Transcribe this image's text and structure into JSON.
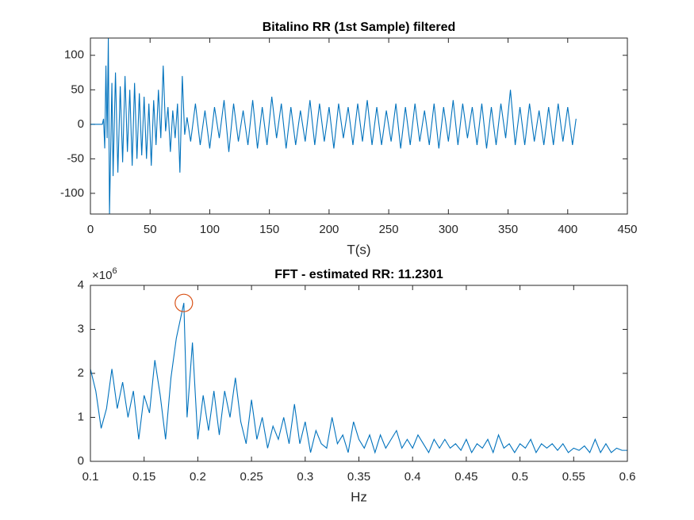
{
  "chart_data": [
    {
      "type": "line",
      "title": "Bitalino RR (1st Sample) filtered",
      "xlabel": "T(s)",
      "color": "#0072bd",
      "x": [
        0,
        10,
        11,
        12,
        13,
        14,
        15,
        16,
        18,
        19,
        21,
        23,
        25,
        27,
        29,
        31,
        33,
        35,
        37,
        39,
        41,
        43,
        45,
        47,
        49,
        51,
        53,
        55,
        57,
        59,
        61,
        63,
        65,
        67,
        69,
        71,
        73,
        75,
        77,
        79,
        81,
        84,
        88,
        92,
        96,
        100,
        104,
        108,
        112,
        116,
        120,
        124,
        128,
        132,
        136,
        140,
        144,
        148,
        152,
        156,
        160,
        164,
        168,
        172,
        176,
        180,
        184,
        188,
        192,
        196,
        200,
        204,
        208,
        212,
        216,
        220,
        224,
        228,
        232,
        236,
        240,
        244,
        248,
        252,
        256,
        260,
        264,
        268,
        272,
        276,
        280,
        284,
        288,
        292,
        296,
        300,
        304,
        308,
        312,
        316,
        320,
        324,
        328,
        332,
        336,
        340,
        344,
        348,
        352,
        356,
        360,
        364,
        368,
        372,
        376,
        380,
        384,
        388,
        392,
        396,
        400,
        404,
        407
      ],
      "values": [
        0,
        0,
        8,
        -35,
        85,
        -20,
        125,
        -130,
        60,
        -75,
        75,
        -70,
        55,
        -55,
        70,
        -40,
        50,
        -60,
        60,
        -50,
        45,
        -45,
        40,
        -50,
        30,
        -60,
        35,
        -30,
        50,
        -20,
        85,
        -10,
        25,
        -40,
        20,
        -20,
        30,
        -70,
        70,
        -15,
        10,
        -25,
        30,
        -30,
        20,
        -35,
        25,
        -20,
        35,
        -40,
        30,
        -25,
        20,
        -30,
        35,
        -35,
        25,
        -30,
        40,
        -20,
        30,
        -35,
        25,
        -30,
        20,
        -25,
        35,
        -30,
        30,
        -25,
        25,
        -35,
        30,
        -20,
        25,
        -30,
        30,
        -25,
        35,
        -30,
        25,
        -30,
        20,
        -25,
        30,
        -35,
        25,
        -30,
        30,
        -25,
        20,
        -30,
        30,
        -35,
        25,
        -25,
        35,
        -30,
        30,
        -20,
        25,
        -30,
        30,
        -35,
        25,
        -30,
        30,
        -20,
        50,
        -30,
        25,
        -30,
        30,
        -25,
        20,
        -30,
        25,
        -30,
        30,
        -25,
        25,
        -30,
        8
      ],
      "xlim": [
        0,
        450
      ],
      "xticks": [
        0,
        50,
        100,
        150,
        200,
        250,
        300,
        350,
        400,
        450
      ],
      "ylim": [
        -130,
        125
      ],
      "yticks": [
        -100,
        -50,
        0,
        50,
        100
      ]
    },
    {
      "type": "line",
      "title": "FFT - estimated RR: 11.2301",
      "xlabel": "Hz",
      "color": "#0072bd",
      "y_exponent": {
        "base": "×10",
        "power": "6"
      },
      "marker": {
        "x": 0.187,
        "y": 3600000,
        "color": "#d95319"
      },
      "x": [
        0.1,
        0.105,
        0.11,
        0.115,
        0.12,
        0.125,
        0.13,
        0.135,
        0.14,
        0.145,
        0.15,
        0.155,
        0.16,
        0.165,
        0.17,
        0.175,
        0.18,
        0.187,
        0.19,
        0.195,
        0.2,
        0.205,
        0.21,
        0.215,
        0.22,
        0.225,
        0.23,
        0.235,
        0.24,
        0.245,
        0.25,
        0.255,
        0.26,
        0.265,
        0.27,
        0.275,
        0.28,
        0.285,
        0.29,
        0.295,
        0.3,
        0.305,
        0.31,
        0.315,
        0.32,
        0.325,
        0.33,
        0.335,
        0.34,
        0.345,
        0.35,
        0.355,
        0.36,
        0.365,
        0.37,
        0.375,
        0.38,
        0.385,
        0.39,
        0.395,
        0.4,
        0.405,
        0.41,
        0.415,
        0.42,
        0.425,
        0.43,
        0.435,
        0.44,
        0.445,
        0.45,
        0.455,
        0.46,
        0.465,
        0.47,
        0.475,
        0.48,
        0.485,
        0.49,
        0.495,
        0.5,
        0.505,
        0.51,
        0.515,
        0.52,
        0.525,
        0.53,
        0.535,
        0.54,
        0.545,
        0.55,
        0.555,
        0.56,
        0.565,
        0.57,
        0.575,
        0.58,
        0.585,
        0.59,
        0.595,
        0.6
      ],
      "values": [
        2100000,
        1600000,
        750000,
        1200000,
        2100000,
        1200000,
        1800000,
        1000000,
        1600000,
        500000,
        1500000,
        1100000,
        2300000,
        1500000,
        500000,
        1900000,
        2800000,
        3600000,
        1000000,
        2700000,
        500000,
        1500000,
        700000,
        1600000,
        600000,
        1600000,
        1000000,
        1900000,
        900000,
        400000,
        1400000,
        500000,
        1000000,
        300000,
        800000,
        500000,
        1000000,
        400000,
        1300000,
        400000,
        900000,
        200000,
        700000,
        400000,
        300000,
        1000000,
        400000,
        600000,
        200000,
        900000,
        500000,
        300000,
        600000,
        200000,
        600000,
        300000,
        500000,
        700000,
        300000,
        500000,
        300000,
        600000,
        400000,
        200000,
        500000,
        300000,
        500000,
        300000,
        400000,
        250000,
        500000,
        200000,
        400000,
        300000,
        500000,
        200000,
        600000,
        300000,
        400000,
        200000,
        400000,
        300000,
        500000,
        200000,
        400000,
        300000,
        400000,
        250000,
        400000,
        200000,
        300000,
        250000,
        350000,
        200000,
        500000,
        200000,
        400000,
        200000,
        300000,
        250000,
        250000
      ],
      "xlim": [
        0.1,
        0.6
      ],
      "xticks": [
        0.1,
        0.15,
        0.2,
        0.25,
        0.3,
        0.35,
        0.4,
        0.45,
        0.5,
        0.55,
        0.6
      ],
      "ylim": [
        0,
        4000000
      ],
      "yticks": [
        {
          "value": 0,
          "label": "0"
        },
        {
          "value": 1000000,
          "label": "1"
        },
        {
          "value": 2000000,
          "label": "2"
        },
        {
          "value": 3000000,
          "label": "3"
        },
        {
          "value": 4000000,
          "label": "4"
        }
      ]
    }
  ]
}
